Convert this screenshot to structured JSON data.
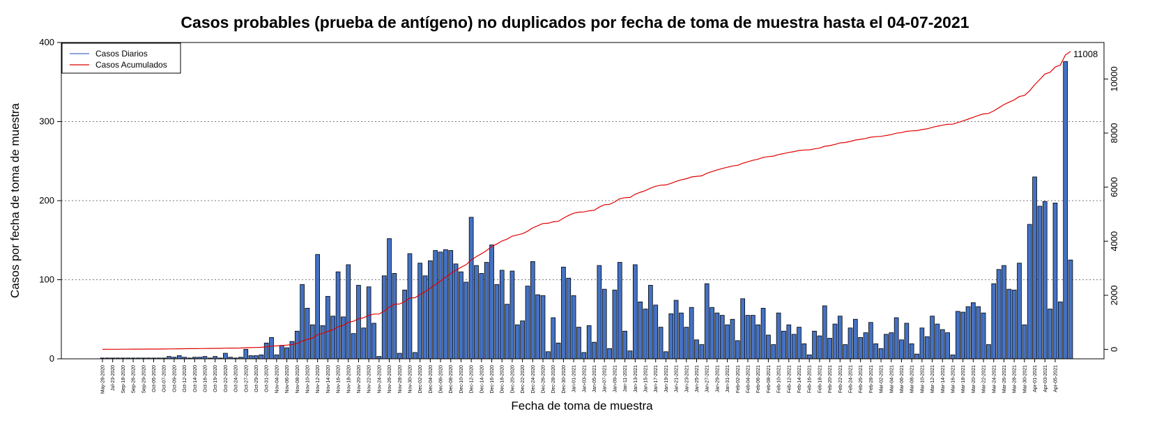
{
  "chart_data": {
    "type": "bar",
    "title": "Casos probables (prueba de antígeno) no duplicados por fecha de toma de muestra hasta el 04-07-2021",
    "xlabel": "Fecha de toma de muestra",
    "ylabel": "Casos por fecha de toma de muestra",
    "ylim": [
      0,
      400
    ],
    "y2lim": [
      -350,
      11350
    ],
    "yticks": [
      0,
      100,
      200,
      300,
      400
    ],
    "y2ticks": [
      0,
      2000,
      4000,
      6000,
      8000,
      10000
    ],
    "grid": "horizontal dotted",
    "legend_position": "top-left",
    "series": [
      {
        "name": "Casos Diarios",
        "color": "#4472C4"
      },
      {
        "name": "Casos Acumulados",
        "color": "#E00000"
      }
    ],
    "end_label": "11008",
    "x_tick_labels": [
      "May-28-2020",
      "Jul-23-2020",
      "Sep-18-2020",
      "Sep-26-2020",
      "Sep-29-2020",
      "Oct-05-2020",
      "Oct-07-2020",
      "Oct-09-2020",
      "Oct-12-2020",
      "Oct-14-2020",
      "Oct-16-2020",
      "Oct-19-2020",
      "Oct-22-2020",
      "Oct-24-2020",
      "Oct-27-2020",
      "Oct-29-2020",
      "Oct-31-2020",
      "Nov-04-2020",
      "Nov-06-2020",
      "Nov-08-2020",
      "Nov-10-2020",
      "Nov-12-2020",
      "Nov-14-2020",
      "Nov-16-2020",
      "Nov-18-2020",
      "Nov-20-2020",
      "Nov-22-2020",
      "Nov-24-2020",
      "Nov-26-2020",
      "Nov-28-2020",
      "Nov-30-2020",
      "Dec-02-2020",
      "Dec-04-2020",
      "Dec-06-2020",
      "Dec-08-2020",
      "Dec-10-2020",
      "Dec-12-2020",
      "Dec-14-2020",
      "Dec-16-2020",
      "Dec-18-2020",
      "Dec-20-2020",
      "Dec-22-2020",
      "Dec-24-2020",
      "Dec-26-2020",
      "Dec-28-2020",
      "Dec-30-2020",
      "Jan-01-2021",
      "Jan-03-2021",
      "Jan-05-2021",
      "Jan-07-2021",
      "Jan-09-2021",
      "Jan-11-2021",
      "Jan-13-2021",
      "Jan-15-2021",
      "Jan-17-2021",
      "Jan-19-2021",
      "Jan-21-2021",
      "Jan-23-2021",
      "Jan-25-2021",
      "Jan-27-2021",
      "Jan-29-2021",
      "Jan-31-2021",
      "Feb-02-2021",
      "Feb-04-2021",
      "Feb-06-2021",
      "Feb-08-2021",
      "Feb-10-2021",
      "Feb-12-2021",
      "Feb-14-2021",
      "Feb-16-2021",
      "Feb-18-2021",
      "Feb-20-2021",
      "Feb-22-2021",
      "Feb-24-2021",
      "Feb-26-2021",
      "Feb-28-2021",
      "Mar-02-2021",
      "Mar-04-2021",
      "Mar-06-2021",
      "Mar-08-2021",
      "Mar-10-2021",
      "Mar-12-2021",
      "Mar-14-2021",
      "Mar-16-2021",
      "Mar-18-2021",
      "Mar-20-2021",
      "Mar-22-2021",
      "Mar-24-2021",
      "Mar-26-2021",
      "Mar-28-2021",
      "Mar-30-2021",
      "Apr-01-2021",
      "Apr-03-2021",
      "Apr-05-2021"
    ],
    "daily_values": [
      1,
      1,
      1,
      1,
      1,
      1,
      1,
      1,
      1,
      1,
      1,
      1,
      1,
      3,
      2,
      4,
      2,
      1,
      2,
      2,
      3,
      1,
      3,
      1,
      7,
      2,
      1,
      2,
      12,
      4,
      4,
      5,
      20,
      27,
      5,
      17,
      14,
      22,
      35,
      94,
      64,
      43,
      132,
      42,
      79,
      54,
      110,
      53,
      119,
      32,
      93,
      39,
      91,
      45,
      3,
      105,
      152,
      108,
      7,
      87,
      133,
      8,
      121,
      105,
      124,
      137,
      135,
      138,
      137,
      120,
      110,
      97,
      179,
      118,
      108,
      122,
      144,
      94,
      112,
      69,
      111,
      43,
      48,
      92,
      123,
      81,
      80,
      9,
      52,
      20,
      116,
      102,
      80,
      40,
      8,
      42,
      21,
      118,
      88,
      13,
      87,
      122,
      35,
      10,
      119,
      72,
      63,
      93,
      68,
      40,
      9,
      57,
      74,
      58,
      40,
      65,
      24,
      18,
      95,
      65,
      58,
      55,
      43,
      50,
      23,
      76,
      55,
      55,
      43,
      64,
      30,
      18,
      58,
      35,
      43,
      31,
      40,
      19,
      5,
      35,
      29,
      67,
      26,
      44,
      54,
      18,
      39,
      50,
      27,
      33,
      46,
      19,
      13,
      31,
      33,
      52,
      24,
      45,
      19,
      6,
      39,
      28,
      54,
      44,
      37,
      33,
      5,
      60,
      59,
      66,
      71,
      66,
      58,
      18,
      95,
      113,
      118,
      88,
      87,
      121,
      43,
      170,
      230,
      193,
      199,
      63,
      197,
      72,
      376,
      125
    ]
  }
}
